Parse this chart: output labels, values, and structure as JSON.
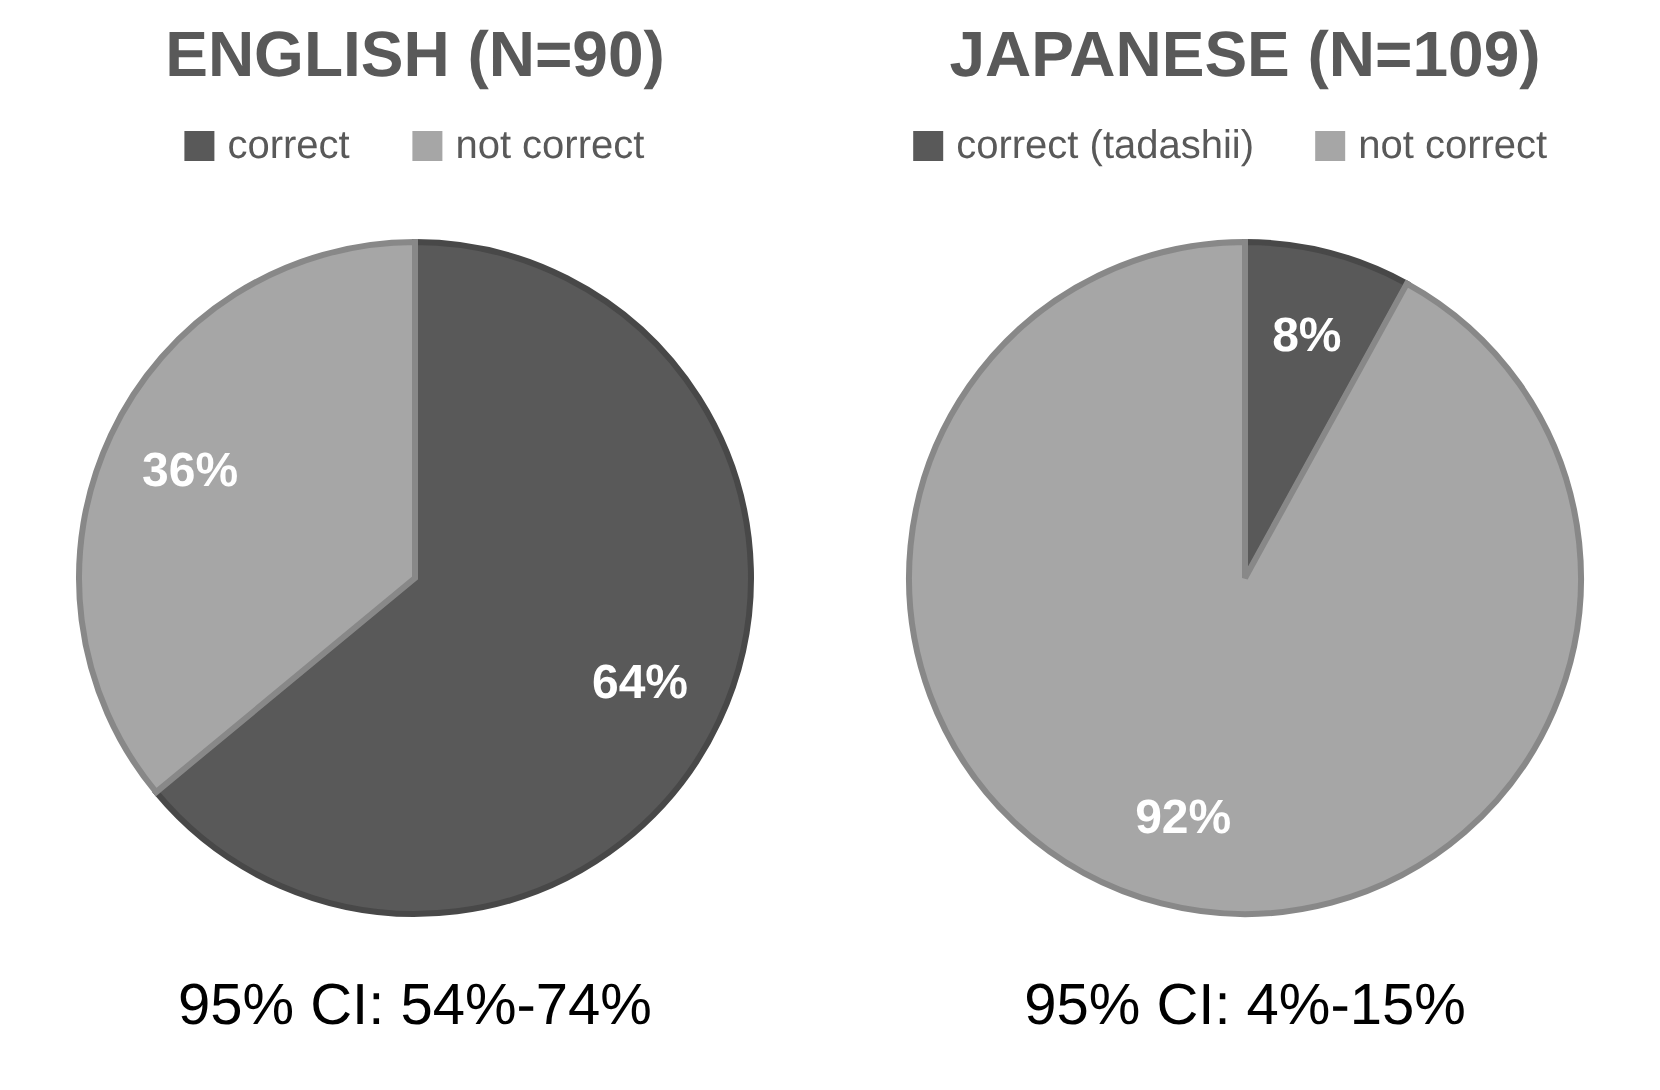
{
  "chart_data": [
    {
      "type": "pie",
      "title": "ENGLISH (N=90)",
      "categories": [
        "correct",
        "not correct"
      ],
      "values": [
        64,
        36
      ],
      "colors": [
        "#595959",
        "#a6a6a6"
      ],
      "value_labels": [
        "64%",
        "36%"
      ],
      "legend": "top",
      "annotations": [
        "95% CI: 54%-74%"
      ]
    },
    {
      "type": "pie",
      "title": "JAPANESE (N=109)",
      "categories": [
        "correct (tadashii)",
        "not correct"
      ],
      "values": [
        8,
        92
      ],
      "colors": [
        "#595959",
        "#a6a6a6"
      ],
      "value_labels": [
        "8%",
        "92%"
      ],
      "legend": "top",
      "annotations": [
        "95% CI: 4%-15%"
      ]
    }
  ]
}
